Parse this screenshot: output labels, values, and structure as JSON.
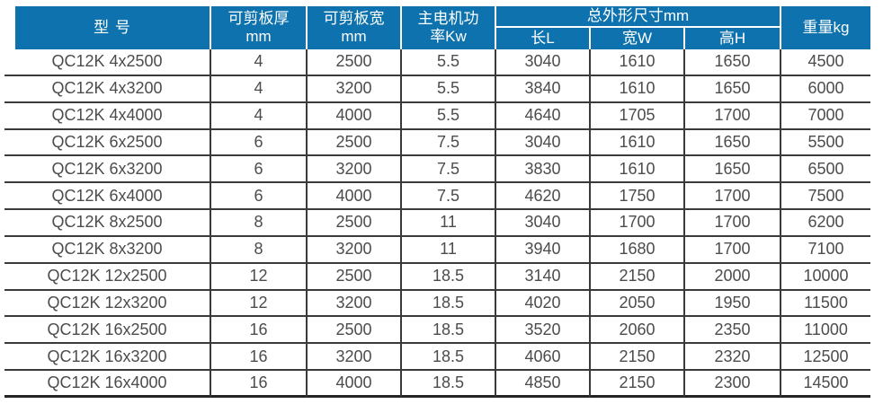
{
  "table": {
    "header": {
      "model": "型 号",
      "thickness_line1": "可剪板厚",
      "thickness_line2": "mm",
      "width_line1": "可剪板宽",
      "width_line2": "mm",
      "power_line1": "主电机功",
      "power_line2": "率Kw",
      "dims_group": "总外形尺寸mm",
      "dim_length": "长L",
      "dim_width": "宽W",
      "dim_height": "高H",
      "weight": "重量kg"
    },
    "rows": [
      {
        "model": "QC12K 4x2500",
        "thickness": "4",
        "width": "2500",
        "power": "5.5",
        "length": "3040",
        "w": "1610",
        "h": "1650",
        "weight": "4500"
      },
      {
        "model": "QC12K 4x3200",
        "thickness": "4",
        "width": "3200",
        "power": "5.5",
        "length": "3840",
        "w": "1610",
        "h": "1650",
        "weight": "6000"
      },
      {
        "model": "QC12K 4x4000",
        "thickness": "4",
        "width": "4000",
        "power": "5.5",
        "length": "4640",
        "w": "1705",
        "h": "1700",
        "weight": "7000"
      },
      {
        "model": "QC12K 6x2500",
        "thickness": "6",
        "width": "2500",
        "power": "7.5",
        "length": "3040",
        "w": "1610",
        "h": "1650",
        "weight": "5500"
      },
      {
        "model": "QC12K 6x3200",
        "thickness": "6",
        "width": "3200",
        "power": "7.5",
        "length": "3830",
        "w": "1610",
        "h": "1650",
        "weight": "6500"
      },
      {
        "model": "QC12K 6x4000",
        "thickness": "6",
        "width": "4000",
        "power": "7.5",
        "length": "4620",
        "w": "1750",
        "h": "1700",
        "weight": "7500"
      },
      {
        "model": "QC12K 8x2500",
        "thickness": "8",
        "width": "2500",
        "power": "11",
        "length": "3040",
        "w": "1700",
        "h": "1700",
        "weight": "6200"
      },
      {
        "model": "QC12K 8x3200",
        "thickness": "8",
        "width": "3200",
        "power": "11",
        "length": "3940",
        "w": "1680",
        "h": "1700",
        "weight": "7100"
      },
      {
        "model": "QC12K 12x2500",
        "thickness": "12",
        "width": "2500",
        "power": "18.5",
        "length": "3140",
        "w": "2150",
        "h": "2000",
        "weight": "10000"
      },
      {
        "model": "QC12K 12x3200",
        "thickness": "12",
        "width": "3200",
        "power": "18.5",
        "length": "4020",
        "w": "2050",
        "h": "1950",
        "weight": "11500"
      },
      {
        "model": "QC12K 16x2500",
        "thickness": "16",
        "width": "2500",
        "power": "18.5",
        "length": "3520",
        "w": "2060",
        "h": "2350",
        "weight": "11000"
      },
      {
        "model": "QC12K 16x3200",
        "thickness": "16",
        "width": "3200",
        "power": "18.5",
        "length": "4060",
        "w": "2150",
        "h": "2320",
        "weight": "12500"
      },
      {
        "model": "QC12K 16x4000",
        "thickness": "16",
        "width": "4000",
        "power": "18.5",
        "length": "4850",
        "w": "2150",
        "h": "2300",
        "weight": "14500"
      }
    ],
    "colors": {
      "header_bg": "#0d72ad",
      "header_text": "#ffffff",
      "body_text": "#4c4c4e",
      "border": "#3a3a3b"
    }
  }
}
